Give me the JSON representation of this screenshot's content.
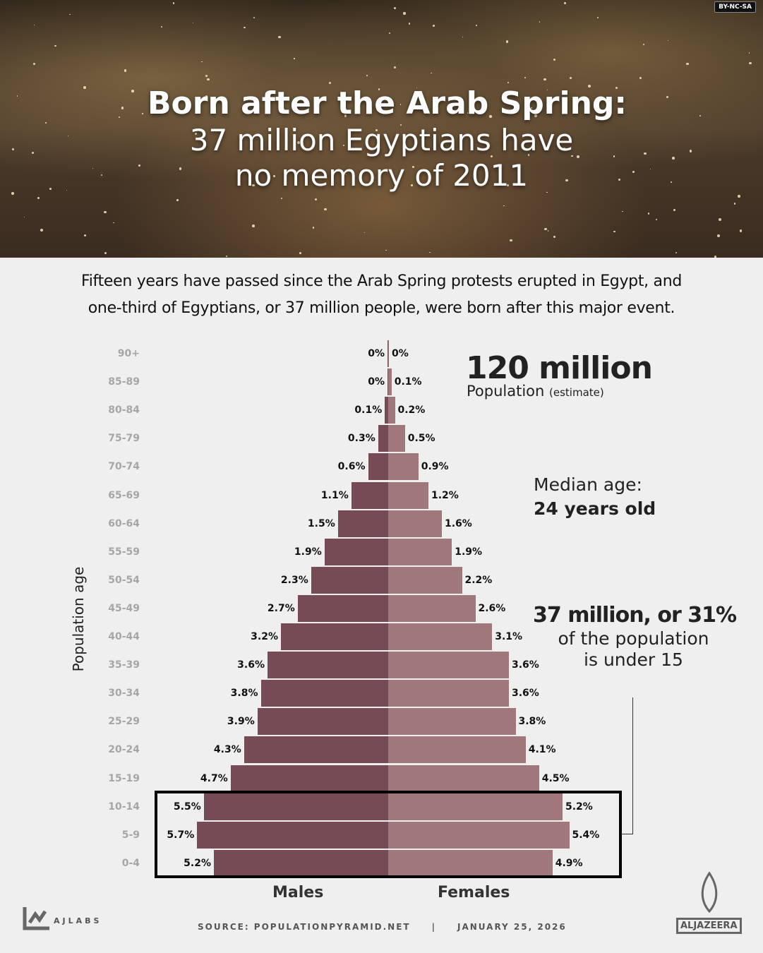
{
  "header": {
    "title_line1": "Born after the Arab Spring:",
    "title_line2": "37 million Egyptians have",
    "title_line3": "no memory of 2011",
    "license": "BY-NC-SA"
  },
  "intro": {
    "line1": "Fifteen years have passed since the Arab Spring protests erupted in Egypt, and",
    "line2": "one-third of Egyptians, or 37 million people, were born after this major event."
  },
  "annotations": {
    "population_value": "120 million",
    "population_label": "Population",
    "population_note": "(estimate)",
    "median_label": "Median age:",
    "median_value": "24 years old",
    "under15_value": "37 million, or 31%",
    "under15_line1": "of the population",
    "under15_line2": "is under 15"
  },
  "chart_data": {
    "type": "bar",
    "subtype": "population-pyramid",
    "ylabel": "Population age",
    "categories": [
      "90+",
      "85-89",
      "80-84",
      "75-79",
      "70-74",
      "65-69",
      "60-64",
      "55-59",
      "50-54",
      "45-49",
      "40-44",
      "35-39",
      "30-34",
      "25-29",
      "20-24",
      "15-19",
      "10-14",
      "5-9",
      "0-4"
    ],
    "series": [
      {
        "name": "Males",
        "color": "#774b55",
        "values": [
          0,
          0,
          0.1,
          0.3,
          0.6,
          1.1,
          1.5,
          1.9,
          2.3,
          2.7,
          3.2,
          3.6,
          3.8,
          3.9,
          4.3,
          4.7,
          5.5,
          5.7,
          5.2
        ],
        "labels": [
          "0%",
          "0%",
          "0.1%",
          "0.3%",
          "0.6%",
          "1.1%",
          "1.5%",
          "1.9%",
          "2.3%",
          "2.7%",
          "3.2%",
          "3.6%",
          "3.8%",
          "3.9%",
          "4.3%",
          "4.7%",
          "5.5%",
          "5.7%",
          "5.2%"
        ]
      },
      {
        "name": "Females",
        "color": "#a0777b",
        "values": [
          0,
          0.1,
          0.2,
          0.5,
          0.9,
          1.2,
          1.6,
          1.9,
          2.2,
          2.6,
          3.1,
          3.6,
          3.6,
          3.8,
          4.1,
          4.5,
          5.2,
          5.4,
          4.9
        ],
        "labels": [
          "0%",
          "0.1%",
          "0.2%",
          "0.5%",
          "0.9%",
          "1.2%",
          "1.6%",
          "1.9%",
          "2.2%",
          "2.6%",
          "3.1%",
          "3.6%",
          "3.6%",
          "3.8%",
          "4.1%",
          "4.5%",
          "5.2%",
          "5.4%",
          "4.9%"
        ]
      }
    ],
    "highlighted_categories": [
      "10-14",
      "5-9",
      "0-4"
    ]
  },
  "footer": {
    "source": "SOURCE:  POPULATIONPYRAMID.NET",
    "separator": "|",
    "date": "JANUARY 25, 2026",
    "ajlabs": "AJLABS",
    "aljazeera": "ALJAZEERA"
  }
}
